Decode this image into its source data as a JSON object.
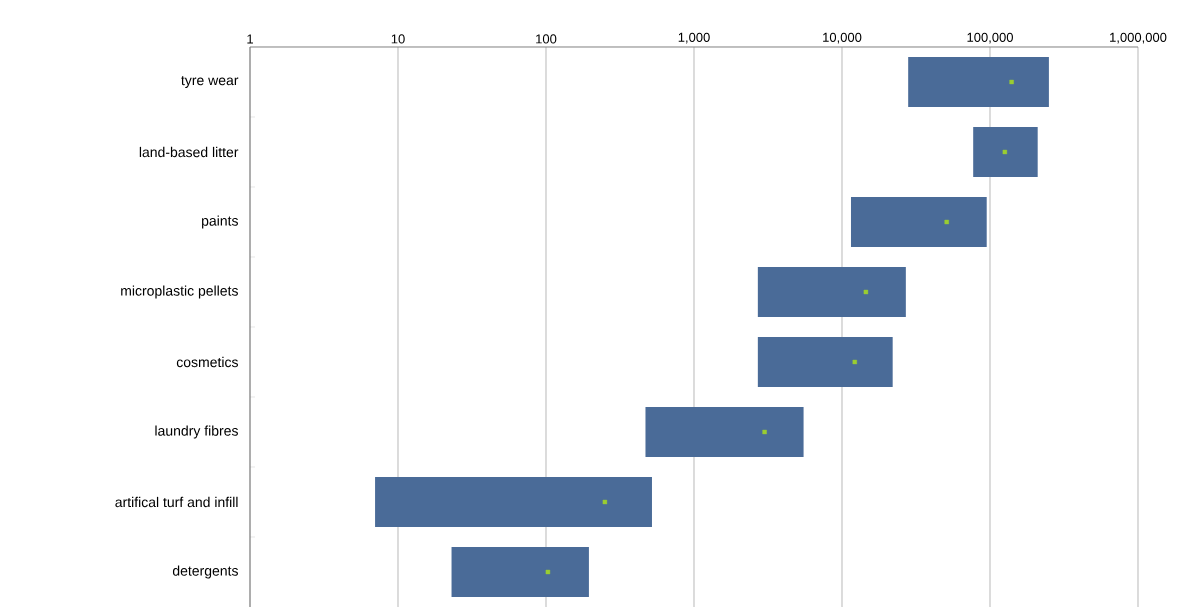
{
  "chart_data": {
    "type": "bar",
    "orientation": "horizontal",
    "log": "x",
    "grid": "x",
    "categories": [
      "tyre wear",
      "land-based litter",
      "paints",
      "microplastic pellets",
      "cosmetics",
      "laundry fibres",
      "artifical turf and infill",
      "detergents"
    ],
    "xlim": [
      1,
      1000000
    ],
    "xticks": [
      1,
      10,
      {
        "value": 100,
        "label": "100"
      },
      {
        "value": 1000,
        "label": "1,000"
      },
      {
        "value": 10000,
        "label": "10,000"
      },
      {
        "value": 100000,
        "label": "100,000"
      },
      {
        "value": 1000000,
        "label": "1,000,000"
      }
    ],
    "series": [
      {
        "color": "#4a6b98",
        "base": [
          28000,
          77000,
          11500,
          2700,
          2700,
          470,
          7,
          23
        ],
        "values": [
          222000,
          133000,
          83500,
          24300,
          19300,
          5030,
          513,
          172
        ]
      },
      {
        "type": "scatter",
        "color": "#9acd32",
        "marker": "square",
        "values": [
          140000,
          126000,
          51000,
          14500,
          12200,
          3000,
          250,
          103
        ]
      }
    ]
  }
}
